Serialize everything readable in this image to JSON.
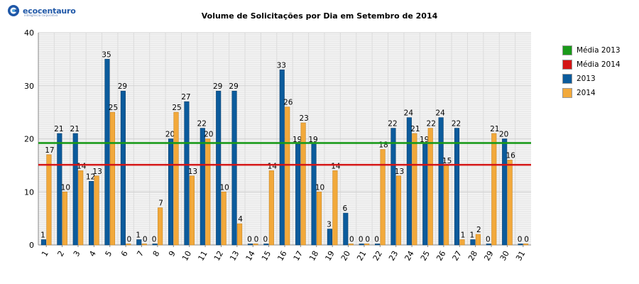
{
  "logo": {
    "name": "ecocentauro",
    "tagline": "inteligência corporativa"
  },
  "chart_data": {
    "type": "bar",
    "title": "Volume de Solicitações por Dia em Setembro de 2014",
    "xlabel": "",
    "ylabel": "",
    "ylim": [
      0,
      40
    ],
    "yticks": [
      0,
      10,
      20,
      30,
      40
    ],
    "grid": true,
    "legend_position": "right",
    "categories": [
      "1",
      "2",
      "3",
      "4",
      "5",
      "6",
      "7",
      "8",
      "9",
      "10",
      "11",
      "12",
      "13",
      "14",
      "15",
      "16",
      "17",
      "18",
      "19",
      "20",
      "21",
      "22",
      "23",
      "24",
      "25",
      "26",
      "27",
      "28",
      "29",
      "30",
      "31"
    ],
    "series": [
      {
        "name": "2013",
        "color": "#0b5b9c",
        "values": [
          1,
          21,
          21,
          12,
          35,
          29,
          1,
          0,
          20,
          27,
          22,
          29,
          29,
          0,
          0,
          33,
          19,
          19,
          3,
          6,
          0,
          0,
          22,
          24,
          19,
          24,
          22,
          1,
          0,
          20,
          0
        ]
      },
      {
        "name": "2014",
        "color": "#f2a93b",
        "values": [
          17,
          10,
          14,
          13,
          25,
          0,
          0,
          7,
          25,
          13,
          20,
          10,
          4,
          0,
          14,
          26,
          23,
          10,
          14,
          0,
          0,
          18,
          13,
          21,
          22,
          15,
          1,
          2,
          21,
          16,
          0
        ]
      }
    ],
    "reference_lines": [
      {
        "name": "Média 2013",
        "value": 19.2,
        "color": "#1a9a1a"
      },
      {
        "name": "Média 2014",
        "value": 15.1,
        "color": "#d41515"
      }
    ],
    "legend": [
      {
        "label": "Média 2013",
        "color": "#1a9a1a"
      },
      {
        "label": "Média 2014",
        "color": "#d41515"
      },
      {
        "label": "2013",
        "color": "#0b5b9c"
      },
      {
        "label": "2014",
        "color": "#f2a93b"
      }
    ]
  }
}
